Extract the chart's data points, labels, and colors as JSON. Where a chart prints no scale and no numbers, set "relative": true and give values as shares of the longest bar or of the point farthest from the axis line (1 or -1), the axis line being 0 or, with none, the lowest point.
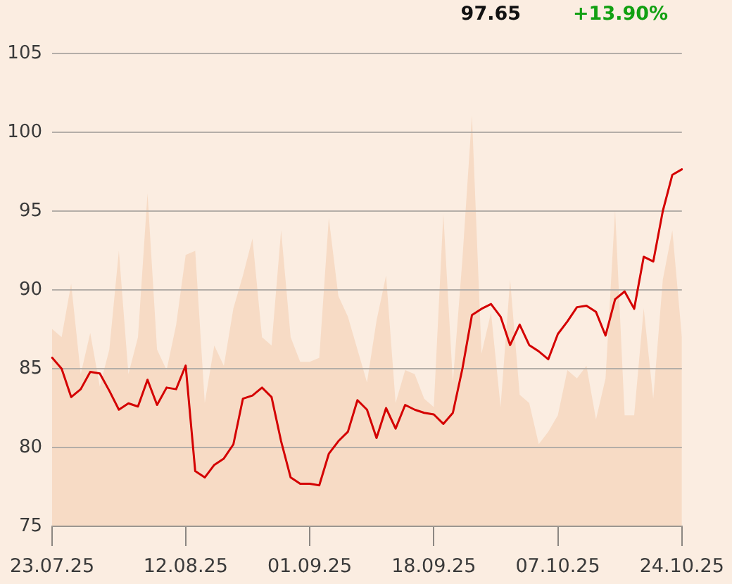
{
  "chart_data": [
    {
      "type": "line",
      "categories": [
        "23.07.25",
        null,
        null,
        null,
        null,
        null,
        null,
        null,
        null,
        null,
        null,
        null,
        null,
        null,
        "12.08.25",
        null,
        null,
        null,
        null,
        null,
        null,
        null,
        null,
        null,
        null,
        null,
        null,
        "01.09.25",
        null,
        null,
        null,
        null,
        null,
        null,
        null,
        null,
        null,
        null,
        null,
        null,
        "18.09.25",
        null,
        null,
        null,
        null,
        null,
        null,
        null,
        null,
        null,
        null,
        null,
        null,
        "07.10.25",
        null,
        null,
        null,
        null,
        null,
        null,
        null,
        null,
        null,
        null,
        null,
        null,
        "24.10.25"
      ],
      "ylim": [
        75,
        105
      ],
      "yticks": [
        75,
        80,
        85,
        90,
        95,
        100,
        105
      ],
      "grid": "y",
      "marker": "none",
      "annotations": [
        "97.65",
        "+13.90%"
      ],
      "color": "#d40000",
      "values": [
        85.7,
        85.0,
        83.2,
        83.7,
        84.8,
        84.7,
        83.6,
        82.4,
        82.8,
        82.6,
        84.3,
        82.7,
        83.8,
        83.7,
        85.2,
        78.5,
        78.1,
        78.9,
        79.3,
        80.2,
        83.1,
        83.3,
        83.8,
        83.2,
        80.4,
        78.1,
        77.7,
        77.7,
        77.6,
        79.6,
        80.4,
        81.0,
        83.0,
        82.4,
        80.6,
        82.5,
        81.2,
        82.7,
        82.4,
        82.2,
        82.1,
        81.5,
        82.2,
        85.0,
        88.4,
        88.8,
        89.1,
        88.3,
        86.5,
        87.8,
        86.5,
        86.1,
        85.6,
        87.2,
        88.0,
        88.9,
        89.0,
        88.6,
        87.1,
        89.4,
        89.9,
        88.8,
        92.1,
        91.8,
        95.0,
        97.3,
        97.65
      ]
    },
    {
      "type": "area",
      "relative": true,
      "categories": [
        null,
        null,
        null,
        null,
        null,
        null,
        null,
        null,
        null,
        null,
        null,
        null,
        null,
        null,
        null,
        null,
        null,
        null,
        null,
        null,
        null,
        null,
        null,
        null,
        null,
        null,
        null,
        null,
        null,
        null,
        null,
        null,
        null,
        null,
        null,
        null,
        null,
        null,
        null,
        null,
        null,
        null,
        null,
        null,
        null,
        null,
        null,
        null,
        null,
        null,
        null,
        null,
        null,
        null,
        null,
        null,
        null,
        null,
        null,
        null,
        null,
        null,
        null,
        null,
        null,
        null,
        null
      ],
      "color": "#f7dbc5",
      "values": [
        0.48,
        0.46,
        0.59,
        0.37,
        0.47,
        0.34,
        0.43,
        0.67,
        0.37,
        0.46,
        0.81,
        0.43,
        0.38,
        0.49,
        0.66,
        0.67,
        0.3,
        0.44,
        0.39,
        0.53,
        0.61,
        0.7,
        0.46,
        0.44,
        0.72,
        0.46,
        0.4,
        0.4,
        0.41,
        0.75,
        0.56,
        0.51,
        0.43,
        0.35,
        0.5,
        0.61,
        0.3,
        0.38,
        0.37,
        0.31,
        0.29,
        0.76,
        0.35,
        0.65,
        1,
        0.42,
        0.52,
        0.29,
        0.6,
        0.32,
        0.3,
        0.2,
        0.23,
        0.27,
        0.38,
        0.36,
        0.39,
        0.26,
        0.36,
        0.77,
        0.27,
        0.27,
        0.53,
        0.31,
        0.6,
        0.72,
        0.46
      ]
    }
  ]
}
